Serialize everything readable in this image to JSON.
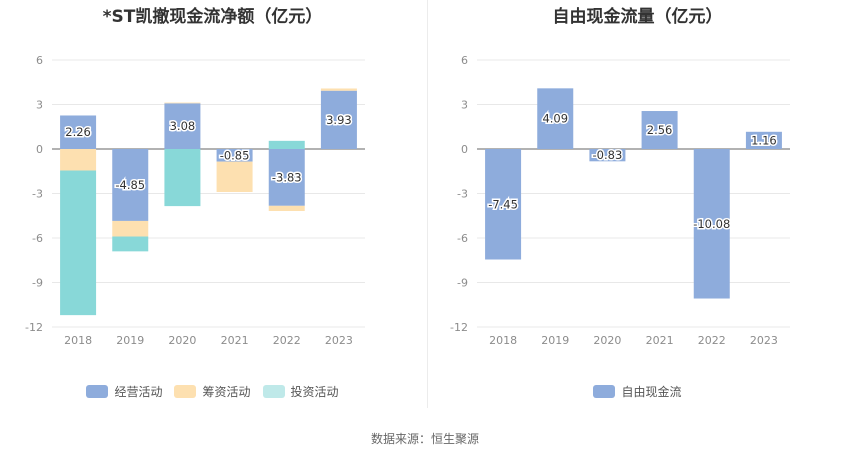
{
  "source_text": "数据来源：恒生聚源",
  "colors": {
    "operating": "#8eacdc",
    "financing": "#fde0b0",
    "investing": "#88d8d8",
    "grid": "#e8e8e8",
    "axis": "#666666"
  },
  "chart_data": [
    {
      "type": "bar",
      "stacked": true,
      "title": "*ST凯撤现金流净额（亿元）",
      "categories": [
        "2018",
        "2019",
        "2020",
        "2021",
        "2022",
        "2023"
      ],
      "ylim": [
        -12,
        6
      ],
      "yticks": [
        "6",
        "3",
        "0",
        "-3",
        "-6",
        "-9",
        "-12"
      ],
      "grid": true,
      "legend_position": "bottom",
      "series": [
        {
          "name": "经营活动",
          "color": "#8eacdc",
          "values": [
            2.26,
            -4.85,
            3.08,
            -0.85,
            -3.83,
            3.93
          ],
          "labels": [
            "2.26",
            "-4.85",
            "3.08",
            "-0.85",
            "-3.83",
            "3.93"
          ]
        },
        {
          "name": "筹资活动",
          "color": "#fde0b0",
          "values": [
            -1.45,
            -1.05,
            0.05,
            -2.05,
            -0.35,
            0.15
          ]
        },
        {
          "name": "投资活动",
          "color": "#88d8d8",
          "values": [
            -9.75,
            -1.0,
            -3.85,
            0.0,
            0.55,
            0.0
          ]
        }
      ]
    },
    {
      "type": "bar",
      "title": "自由现金流量（亿元）",
      "categories": [
        "2018",
        "2019",
        "2020",
        "2021",
        "2022",
        "2023"
      ],
      "ylim": [
        -12,
        6
      ],
      "yticks": [
        "6",
        "3",
        "0",
        "-3",
        "-6",
        "-9",
        "-12"
      ],
      "grid": true,
      "legend_position": "bottom",
      "series": [
        {
          "name": "自由现金流",
          "color": "#8eacdc",
          "values": [
            -7.45,
            4.09,
            -0.83,
            2.56,
            -10.08,
            1.16
          ],
          "labels": [
            "-7.45",
            "4.09",
            "-0.83",
            "2.56",
            "-10.08",
            "1.16"
          ]
        }
      ]
    }
  ]
}
